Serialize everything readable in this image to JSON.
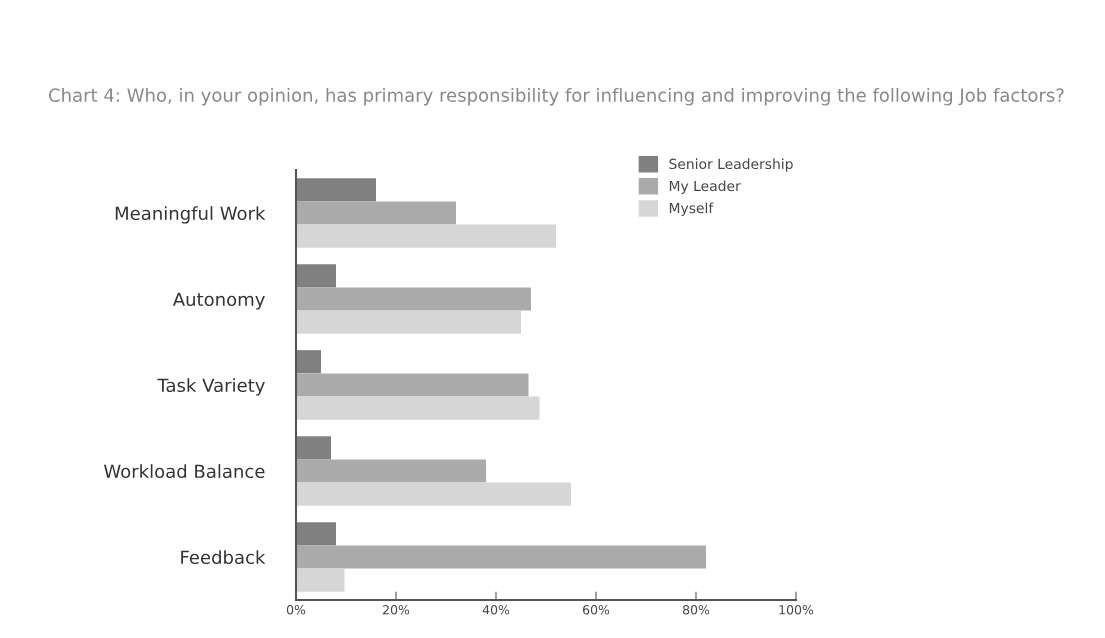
{
  "chart_data": {
    "type": "bar",
    "orientation": "horizontal",
    "title": "Chart 4: Who, in your opinion, has primary responsibility for influencing and improving the following Job factors?",
    "categories": [
      "Meaningful Work",
      "Autonomy",
      "Task Variety",
      "Workload Balance",
      "Feedback"
    ],
    "series": [
      {
        "name": "Senior Leadership",
        "color": "#808080",
        "values": [
          16,
          8,
          5,
          7,
          8
        ]
      },
      {
        "name": "My Leader",
        "color": "#ababab",
        "values": [
          32,
          47,
          46.5,
          38,
          82
        ]
      },
      {
        "name": "Myself",
        "color": "#d6d6d6",
        "values": [
          52,
          45,
          48.7,
          55,
          9.7
        ]
      }
    ],
    "xlim": [
      0,
      100
    ],
    "xticks": [
      {
        "value": 0,
        "label": "0%"
      },
      {
        "value": 20,
        "label": "20%"
      },
      {
        "value": 40,
        "label": "40%"
      },
      {
        "value": 60,
        "label": "60%"
      },
      {
        "value": 80,
        "label": "80%"
      },
      {
        "value": 100,
        "label": "100%"
      }
    ],
    "legend": "top right",
    "grid": false
  }
}
